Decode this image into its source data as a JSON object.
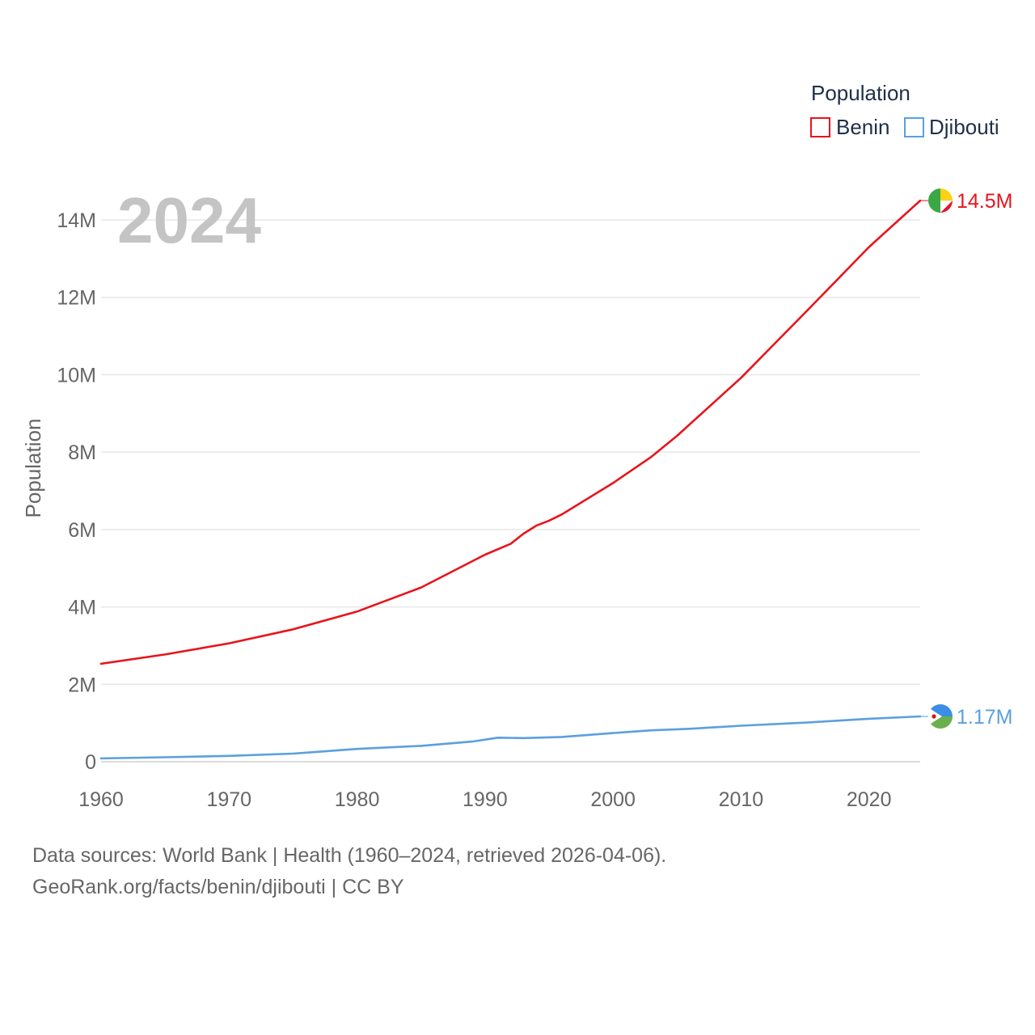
{
  "chart_data": {
    "type": "line",
    "year_label": "2024",
    "ylabel": "Population",
    "xlim": [
      1960,
      2024
    ],
    "ylim": [
      0,
      14000000
    ],
    "x_ticks": [
      1960,
      1970,
      1980,
      1990,
      2000,
      2010,
      2020
    ],
    "y_ticks": [
      {
        "value": 0,
        "label": "0"
      },
      {
        "value": 2000000,
        "label": "2M"
      },
      {
        "value": 4000000,
        "label": "4M"
      },
      {
        "value": 6000000,
        "label": "6M"
      },
      {
        "value": 8000000,
        "label": "8M"
      },
      {
        "value": 10000000,
        "label": "10M"
      },
      {
        "value": 12000000,
        "label": "12M"
      },
      {
        "value": 14000000,
        "label": "14M"
      }
    ],
    "legend_title": "Population",
    "grid": true,
    "series": [
      {
        "name": "Benin",
        "color": "#e8141c",
        "end_label": "14.5M",
        "flag_icon": "benin-flag-icon",
        "points": [
          [
            1960,
            2530000
          ],
          [
            1965,
            2770000
          ],
          [
            1970,
            3060000
          ],
          [
            1975,
            3420000
          ],
          [
            1980,
            3880000
          ],
          [
            1985,
            4500000
          ],
          [
            1990,
            5350000
          ],
          [
            1992,
            5630000
          ],
          [
            1993,
            5890000
          ],
          [
            1994,
            6100000
          ],
          [
            1995,
            6230000
          ],
          [
            1996,
            6390000
          ],
          [
            2000,
            7200000
          ],
          [
            2003,
            7880000
          ],
          [
            2005,
            8420000
          ],
          [
            2010,
            9920000
          ],
          [
            2015,
            11600000
          ],
          [
            2020,
            13300000
          ],
          [
            2024,
            14500000
          ]
        ]
      },
      {
        "name": "Djibouti",
        "color": "#5aa0e0",
        "end_label": "1.17M",
        "flag_icon": "djibouti-flag-icon",
        "points": [
          [
            1960,
            85000
          ],
          [
            1965,
            115000
          ],
          [
            1970,
            150000
          ],
          [
            1975,
            210000
          ],
          [
            1980,
            330000
          ],
          [
            1985,
            410000
          ],
          [
            1989,
            520000
          ],
          [
            1991,
            620000
          ],
          [
            1993,
            610000
          ],
          [
            1996,
            640000
          ],
          [
            2000,
            740000
          ],
          [
            2003,
            810000
          ],
          [
            2006,
            850000
          ],
          [
            2010,
            930000
          ],
          [
            2015,
            1010000
          ],
          [
            2020,
            1110000
          ],
          [
            2024,
            1170000
          ]
        ]
      }
    ]
  },
  "footer": {
    "source": "Data sources: World Bank | Health (1960–2024, retrieved 2026-04-06).",
    "attribution": "GeoRank.org/facts/benin/djibouti | CC BY"
  }
}
